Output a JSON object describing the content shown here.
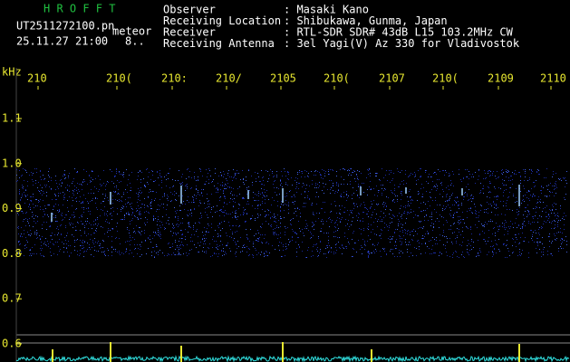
{
  "header": {
    "app": "H R O F F T",
    "file": "UT2511272100.pn",
    "mode": "meteor",
    "datetime": "25.11.27 21:00",
    "count": "8..",
    "fields": [
      {
        "label": "Observer",
        "value": ": Masaki Kano"
      },
      {
        "label": "Receiving Location",
        "value": ": Shibukawa, Gunma, Japan"
      },
      {
        "label": "Receiver",
        "value": ": RTL-SDR SDR# 43dB L15 103.2MHz CW"
      },
      {
        "label": "Receiving Antenna",
        "value": ": 3el Yagi(V) Az 330 for Vladivostok"
      }
    ]
  },
  "plot": {
    "unit": "kHz",
    "time_labels": [
      "210",
      "210(",
      "210:",
      "210/",
      "2105",
      "210(",
      "2107",
      "210(",
      "2109",
      "2110"
    ],
    "freq_labels": [
      "1.1",
      "1.0",
      "0.9",
      "0.8",
      "0.7",
      "0.6"
    ]
  }
}
